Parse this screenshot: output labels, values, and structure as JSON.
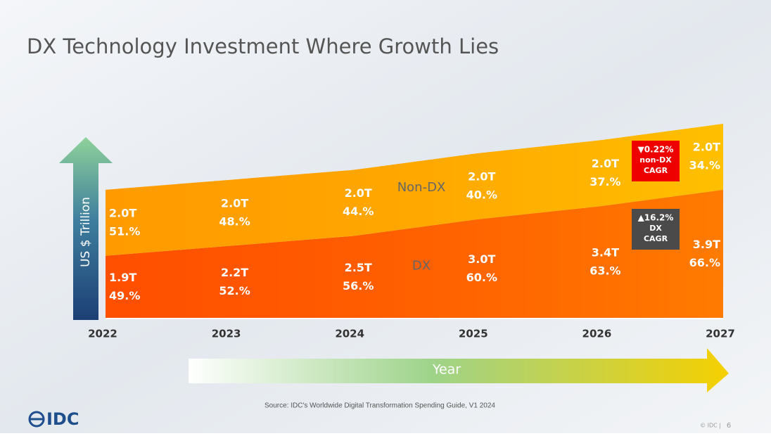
{
  "title": "DX Technology Investment Where Growth Lies",
  "chart_data": {
    "type": "stacked-area",
    "y_label": "US $ Trillion",
    "x_label": "Year",
    "categories": [
      "2022",
      "2023",
      "2024",
      "2025",
      "2026",
      "2027"
    ],
    "series": [
      {
        "name": "DX",
        "color": "#ff5a00",
        "values": [
          1.9,
          2.2,
          2.5,
          3.0,
          3.4,
          3.9
        ],
        "value_labels": [
          "1.9T",
          "2.2T",
          "2.5T",
          "3.0T",
          "3.4T",
          "3.9T"
        ],
        "share_labels": [
          "49.%",
          "52.%",
          "56.%",
          "60.%",
          "63.%",
          "66.%"
        ]
      },
      {
        "name": "Non-DX",
        "color": "#ffb000",
        "values": [
          2.0,
          2.0,
          2.0,
          2.0,
          2.0,
          2.0
        ],
        "value_labels": [
          "2.0T",
          "2.0T",
          "2.0T",
          "2.0T",
          "2.0T",
          "2.0T"
        ],
        "share_labels": [
          "51.%",
          "48.%",
          "44.%",
          "40.%",
          "37.%",
          "34.%"
        ]
      }
    ],
    "annotations": [
      {
        "lines": [
          "▼0.22%",
          "non-DX",
          "CAGR"
        ],
        "color": "#ee0000"
      },
      {
        "lines": [
          "▲16.2%",
          "DX",
          "CAGR"
        ],
        "color": "#4a4a4a"
      }
    ]
  },
  "source": "Source: IDC's Worldwide Digital Transformation Spending Guide, V1 2024",
  "logo": "IDC",
  "footer": "© IDC |",
  "page": "6"
}
